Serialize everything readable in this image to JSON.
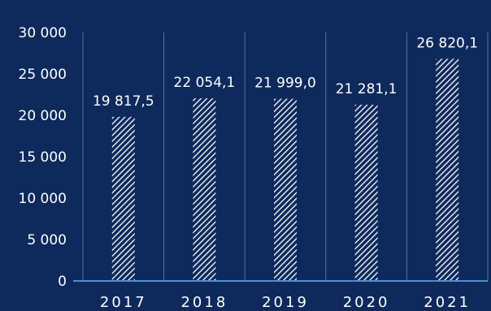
{
  "chart_data": {
    "type": "bar",
    "title": "",
    "xlabel": "",
    "ylabel": "",
    "categories": [
      "2017",
      "2018",
      "2019",
      "2020",
      "2021"
    ],
    "values": [
      19817.5,
      22054.1,
      21999.0,
      21281.1,
      26820.1
    ],
    "data_labels": [
      "19 817,5",
      "22 054,1",
      "21 999,0",
      "21 281,1",
      "26 820,1"
    ],
    "ylim": [
      0,
      30000
    ],
    "yticks": [
      0,
      5000,
      10000,
      15000,
      20000,
      25000,
      30000
    ],
    "ytick_labels": [
      "0",
      "5 000",
      "10 000",
      "15 000",
      "20 000",
      "25 000",
      "30 000"
    ],
    "grid": "vertical",
    "legend": "none",
    "colors": {
      "background": "#0e2a5c",
      "bar_hatch": "#ffffff",
      "bar_fill": "#0e2a5c",
      "grid": "#5a7399",
      "axis": "#4a90d9"
    }
  }
}
